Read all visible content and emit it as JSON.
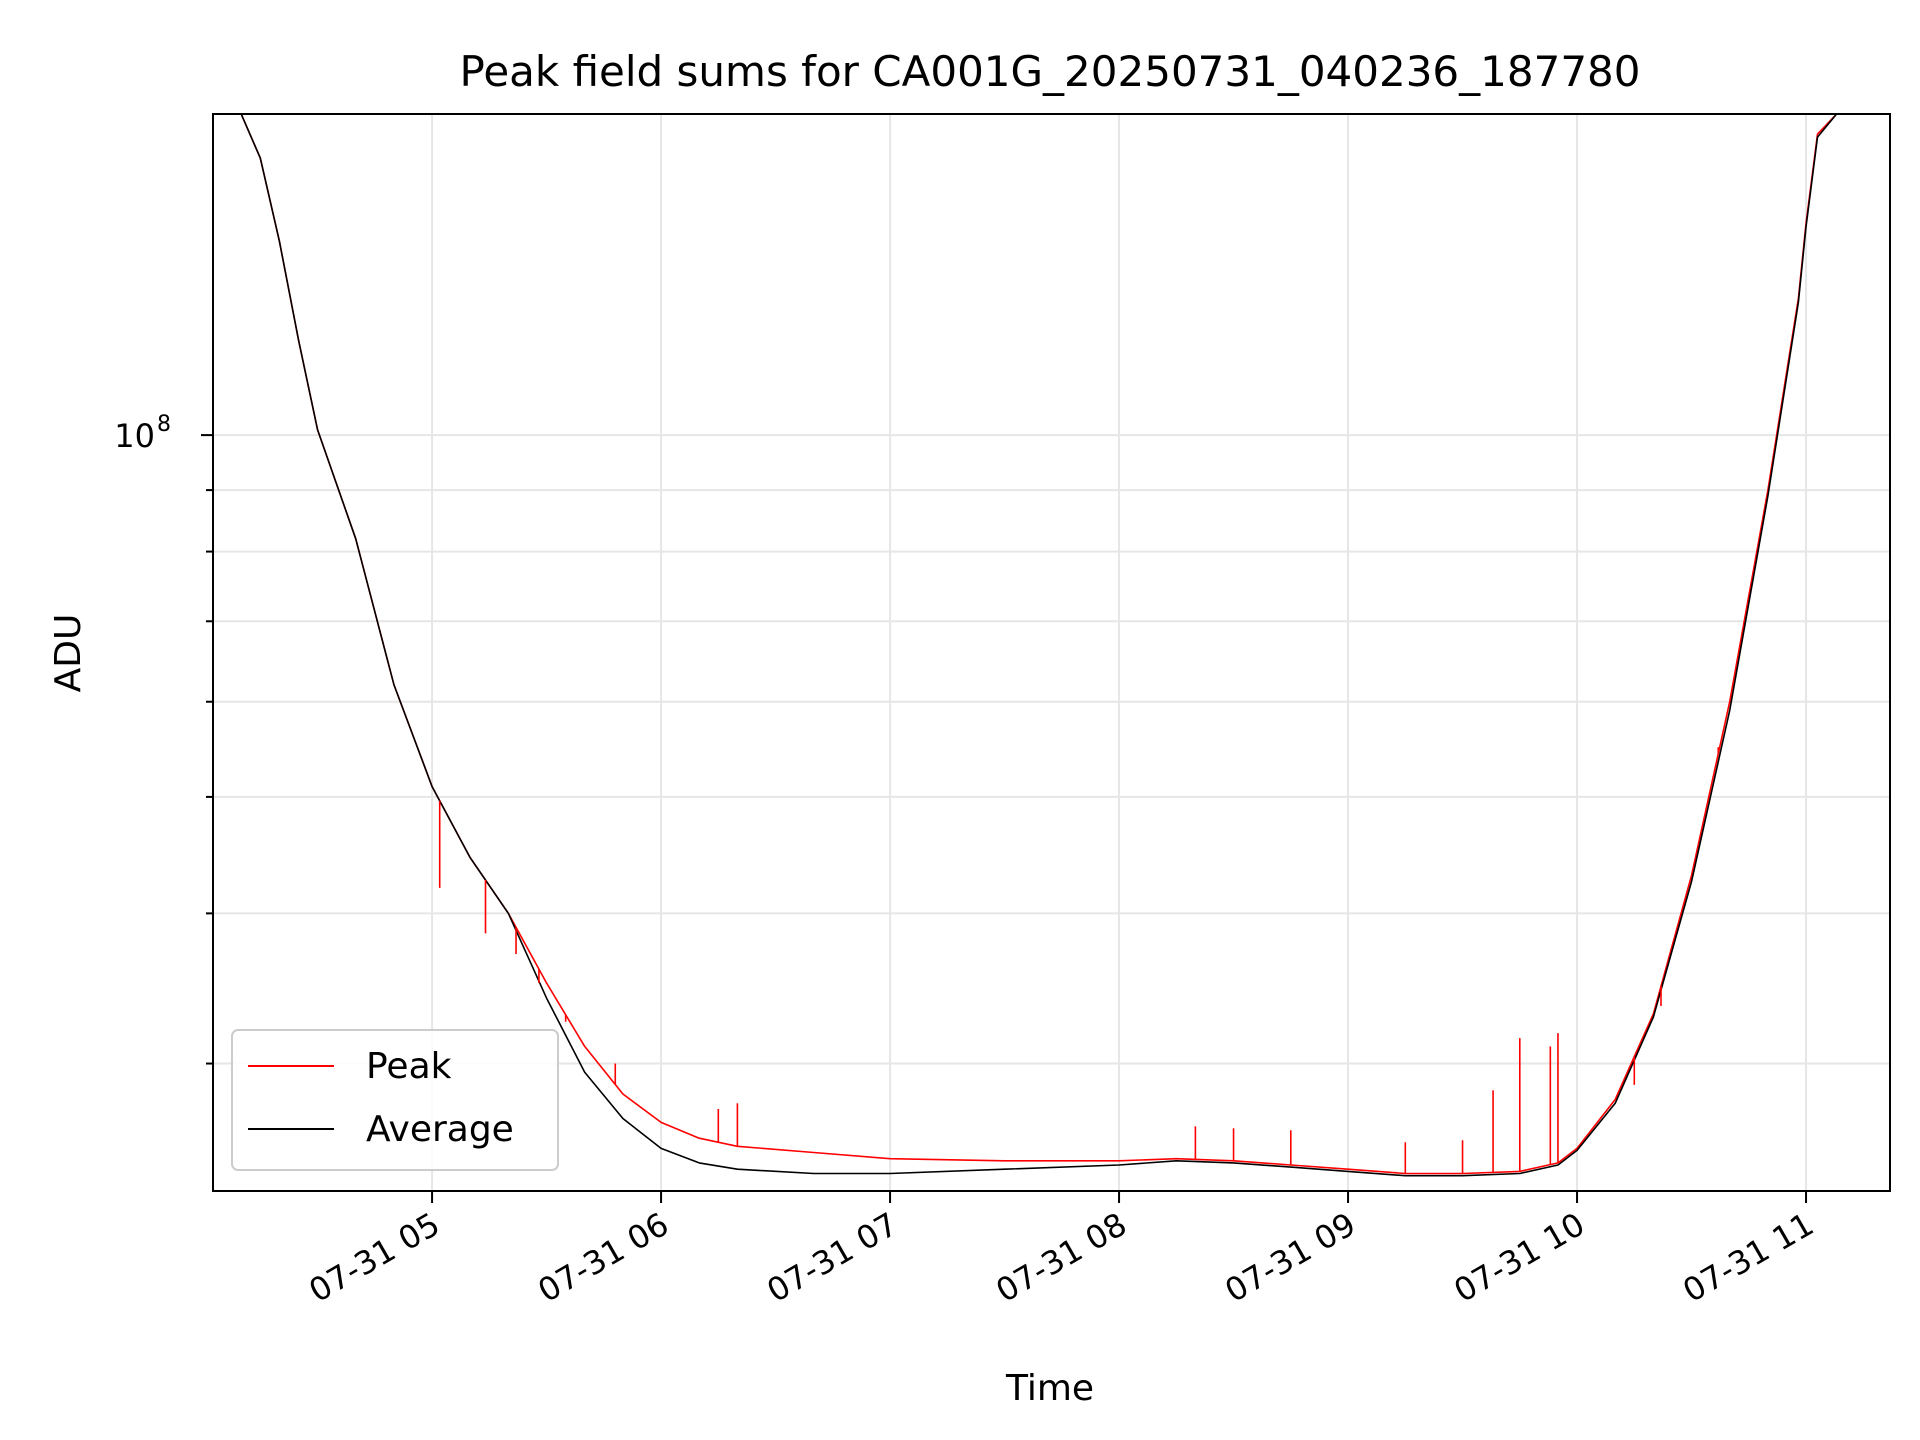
{
  "chart_data": {
    "type": "line",
    "title": "Peak field sums for CA001G_20250731_040236_187780",
    "xlabel": "Time",
    "ylabel": "ADU",
    "y_scale": "log",
    "ylim": [
      23500000,
      185000000
    ],
    "xlim": [
      "2025-07-31T04:02:36",
      "2025-07-31T11:22:00"
    ],
    "x_ticks": [
      {
        "x": "2025-07-31T05:00:00",
        "label": "07-31 05"
      },
      {
        "x": "2025-07-31T06:00:00",
        "label": "07-31 06"
      },
      {
        "x": "2025-07-31T07:00:00",
        "label": "07-31 07"
      },
      {
        "x": "2025-07-31T08:00:00",
        "label": "07-31 08"
      },
      {
        "x": "2025-07-31T09:00:00",
        "label": "07-31 09"
      },
      {
        "x": "2025-07-31T10:00:00",
        "label": "07-31 10"
      },
      {
        "x": "2025-07-31T11:00:00",
        "label": "07-31 11"
      }
    ],
    "y_ticks": [
      {
        "y": 100000000,
        "label_base": "10",
        "label_exp": "8"
      }
    ],
    "y_minor_ticks": [
      30000000,
      40000000,
      50000000,
      60000000,
      70000000,
      80000000,
      90000000
    ],
    "grid": true,
    "legend_position": "lower-left",
    "series": [
      {
        "name": "Peak",
        "color": "#ff0000",
        "x": [
          "2025-07-31T04:02:36",
          "2025-07-31T04:10:00",
          "2025-07-31T04:15:00",
          "2025-07-31T04:20:00",
          "2025-07-31T04:25:00",
          "2025-07-31T04:30:00",
          "2025-07-31T04:40:00",
          "2025-07-31T04:50:00",
          "2025-07-31T05:00:00",
          "2025-07-31T05:10:00",
          "2025-07-31T05:20:00",
          "2025-07-31T05:30:00",
          "2025-07-31T05:40:00",
          "2025-07-31T05:50:00",
          "2025-07-31T06:00:00",
          "2025-07-31T06:10:00",
          "2025-07-31T06:20:00",
          "2025-07-31T06:40:00",
          "2025-07-31T07:00:00",
          "2025-07-31T07:30:00",
          "2025-07-31T08:00:00",
          "2025-07-31T08:15:00",
          "2025-07-31T08:30:00",
          "2025-07-31T08:45:00",
          "2025-07-31T09:00:00",
          "2025-07-31T09:15:00",
          "2025-07-31T09:30:00",
          "2025-07-31T09:45:00",
          "2025-07-31T09:55:00",
          "2025-07-31T10:00:00",
          "2025-07-31T10:10:00",
          "2025-07-31T10:20:00",
          "2025-07-31T10:30:00",
          "2025-07-31T10:40:00",
          "2025-07-31T10:50:00",
          "2025-07-31T10:58:00",
          "2025-07-31T11:00:00",
          "2025-07-31T11:03:00",
          "2025-07-31T11:08:00",
          "2025-07-31T11:22:00"
        ],
        "y": [
          185000000,
          185000000,
          170000000,
          145000000,
          120000000,
          101000000,
          82000000,
          62000000,
          51000000,
          44500000,
          40000000,
          35000000,
          31000000,
          28300000,
          26800000,
          26000000,
          25600000,
          25300000,
          25000000,
          24900000,
          24900000,
          25000000,
          24900000,
          24700000,
          24500000,
          24300000,
          24300000,
          24400000,
          24800000,
          25500000,
          28000000,
          33000000,
          43000000,
          60000000,
          90000000,
          130000000,
          150000000,
          178000000,
          185000000,
          185000000
        ]
      },
      {
        "name": "Average",
        "color": "#000000",
        "x": [
          "2025-07-31T04:02:36",
          "2025-07-31T04:10:00",
          "2025-07-31T04:15:00",
          "2025-07-31T04:20:00",
          "2025-07-31T04:25:00",
          "2025-07-31T04:30:00",
          "2025-07-31T04:40:00",
          "2025-07-31T04:50:00",
          "2025-07-31T05:00:00",
          "2025-07-31T05:10:00",
          "2025-07-31T05:20:00",
          "2025-07-31T05:30:00",
          "2025-07-31T05:40:00",
          "2025-07-31T05:50:00",
          "2025-07-31T06:00:00",
          "2025-07-31T06:10:00",
          "2025-07-31T06:20:00",
          "2025-07-31T06:40:00",
          "2025-07-31T07:00:00",
          "2025-07-31T07:30:00",
          "2025-07-31T08:00:00",
          "2025-07-31T08:15:00",
          "2025-07-31T08:30:00",
          "2025-07-31T08:45:00",
          "2025-07-31T09:00:00",
          "2025-07-31T09:15:00",
          "2025-07-31T09:30:00",
          "2025-07-31T09:45:00",
          "2025-07-31T09:55:00",
          "2025-07-31T10:00:00",
          "2025-07-31T10:10:00",
          "2025-07-31T10:20:00",
          "2025-07-31T10:30:00",
          "2025-07-31T10:40:00",
          "2025-07-31T10:50:00",
          "2025-07-31T10:58:00",
          "2025-07-31T11:00:00",
          "2025-07-31T11:03:00",
          "2025-07-31T11:08:00",
          "2025-07-31T11:22:00"
        ],
        "y": [
          185000000,
          185000000,
          170000000,
          145000000,
          120000000,
          101000000,
          82000000,
          62000000,
          51000000,
          44500000,
          40000000,
          34000000,
          29500000,
          27000000,
          25500000,
          24800000,
          24500000,
          24300000,
          24300000,
          24500000,
          24700000,
          24900000,
          24800000,
          24600000,
          24400000,
          24200000,
          24200000,
          24300000,
          24700000,
          25400000,
          27800000,
          32800000,
          42500000,
          59000000,
          89000000,
          129000000,
          149000000,
          177000000,
          185000000,
          185000000
        ]
      }
    ],
    "peak_spikes": [
      {
        "x": "2025-07-31T05:02:00",
        "y": 42000000
      },
      {
        "x": "2025-07-31T05:14:00",
        "y": 38500000
      },
      {
        "x": "2025-07-31T05:22:00",
        "y": 37000000
      },
      {
        "x": "2025-07-31T05:28:00",
        "y": 35000000
      },
      {
        "x": "2025-07-31T05:35:00",
        "y": 32500000
      },
      {
        "x": "2025-07-31T05:48:00",
        "y": 30000000
      },
      {
        "x": "2025-07-31T06:15:00",
        "y": 27500000
      },
      {
        "x": "2025-07-31T06:20:00",
        "y": 27800000
      },
      {
        "x": "2025-07-31T08:20:00",
        "y": 26600000
      },
      {
        "x": "2025-07-31T08:30:00",
        "y": 26500000
      },
      {
        "x": "2025-07-31T08:45:00",
        "y": 26400000
      },
      {
        "x": "2025-07-31T09:15:00",
        "y": 25800000
      },
      {
        "x": "2025-07-31T09:30:00",
        "y": 25900000
      },
      {
        "x": "2025-07-31T09:38:00",
        "y": 28500000
      },
      {
        "x": "2025-07-31T09:45:00",
        "y": 31500000
      },
      {
        "x": "2025-07-31T09:53:00",
        "y": 31000000
      },
      {
        "x": "2025-07-31T09:55:00",
        "y": 31800000
      },
      {
        "x": "2025-07-31T10:15:00",
        "y": 28800000
      },
      {
        "x": "2025-07-31T10:22:00",
        "y": 33500000
      },
      {
        "x": "2025-07-31T10:37:00",
        "y": 55000000
      }
    ]
  },
  "legend": {
    "peak_label": "Peak",
    "average_label": "Average"
  }
}
